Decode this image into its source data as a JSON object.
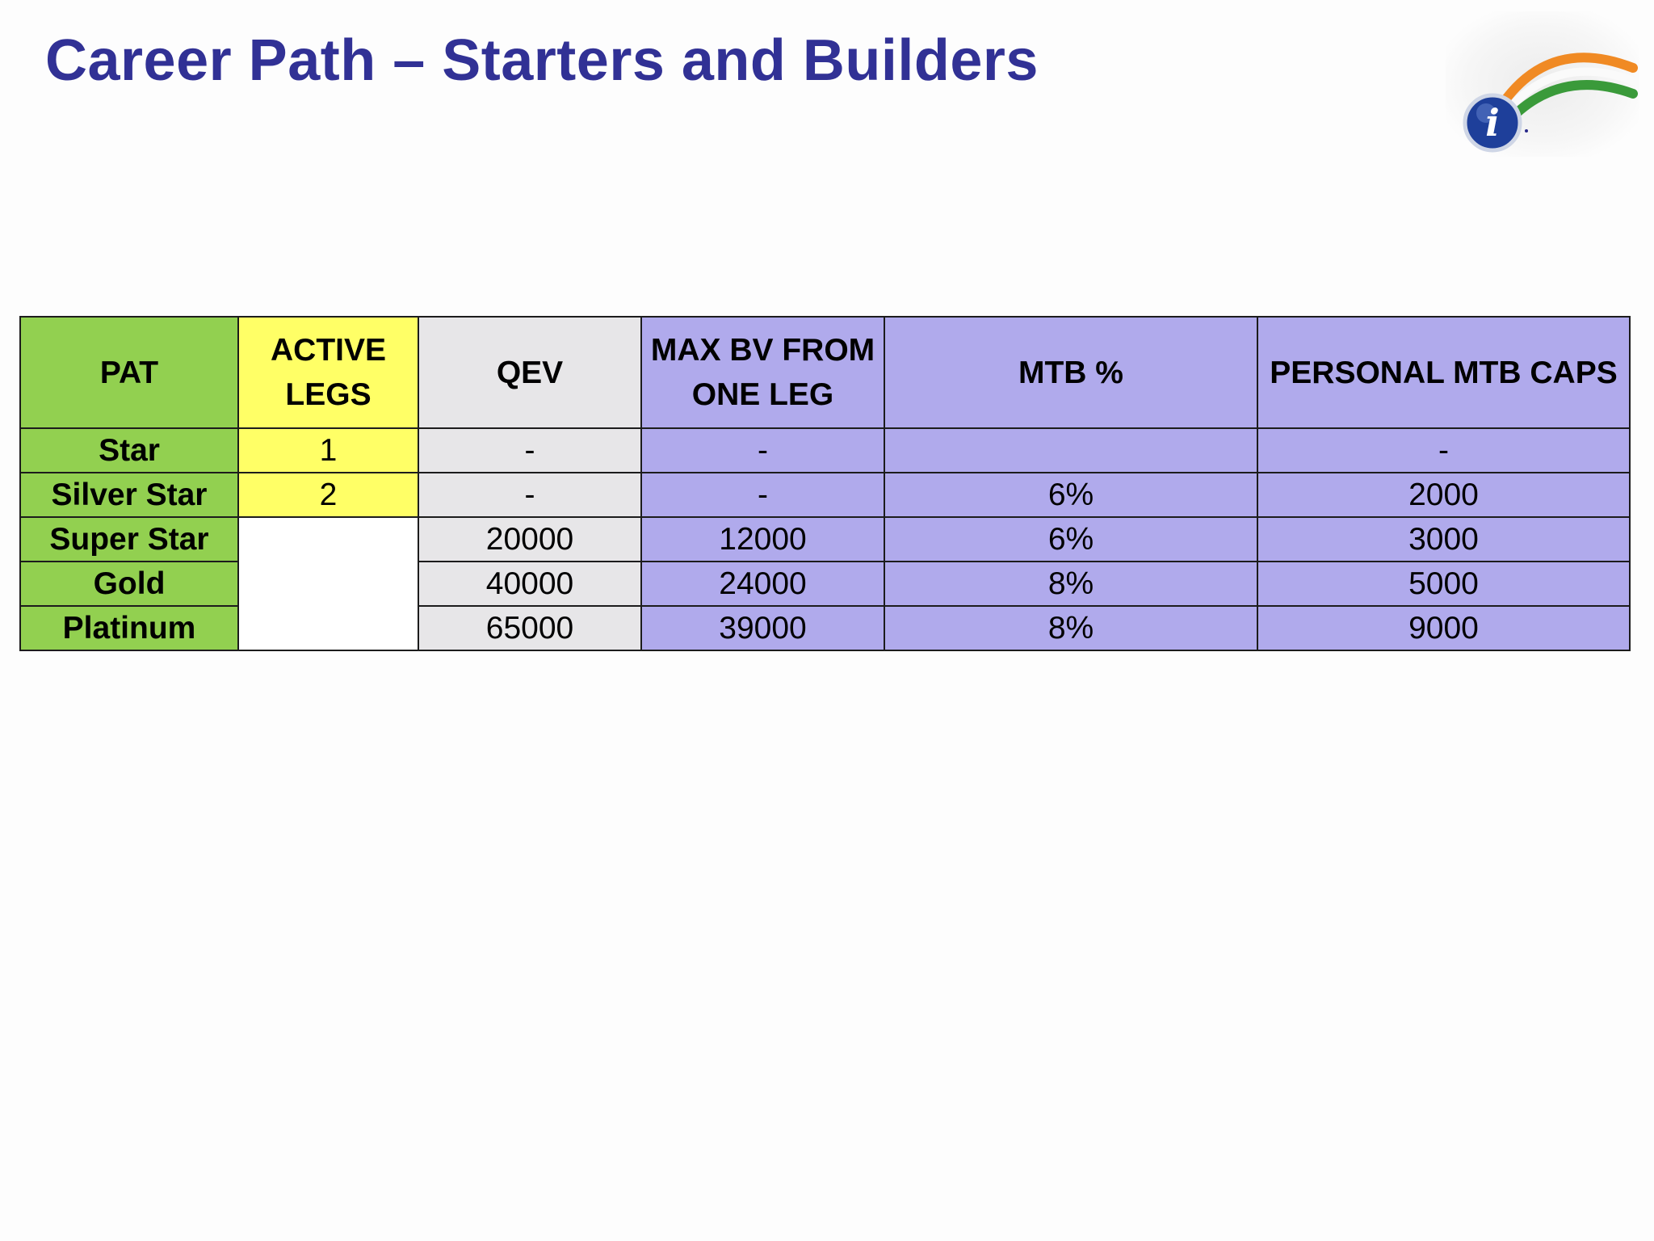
{
  "slide": {
    "title": "Career Path – Starters and Builders"
  },
  "logo": {
    "icon": "brand-logo-icon",
    "letter": "i"
  },
  "table": {
    "headers": {
      "pat": "PAT",
      "active_legs_line1": "ACTIVE",
      "active_legs_line2": "LEGS",
      "qev": "QEV",
      "max_bv_line1": "MAX BV FROM",
      "max_bv_line2": "ONE LEG",
      "mtb_percent": "MTB %",
      "personal_mtb_caps": "PERSONAL MTB CAPS"
    },
    "rows": [
      {
        "pat": "Star",
        "active_legs": "1",
        "qev": "-",
        "max_bv": "-",
        "mtb_percent": "",
        "personal_mtb_caps": "-"
      },
      {
        "pat": "Silver Star",
        "active_legs": "2",
        "qev": "-",
        "max_bv": "-",
        "mtb_percent": "6%",
        "personal_mtb_caps": "2000"
      },
      {
        "pat": "Super Star",
        "active_legs": "",
        "qev": "20000",
        "max_bv": "12000",
        "mtb_percent": "6%",
        "personal_mtb_caps": "3000"
      },
      {
        "pat": "Gold",
        "qev": "40000",
        "max_bv": "24000",
        "mtb_percent": "8%",
        "personal_mtb_caps": "5000"
      },
      {
        "pat": "Platinum",
        "qev": "65000",
        "max_bv": "39000",
        "mtb_percent": "8%",
        "personal_mtb_caps": "9000"
      }
    ]
  },
  "colors": {
    "title": "#313195",
    "pat_column": "#92d050",
    "active_legs_column": "#ffff66",
    "qev_column": "#e7e6e8",
    "mtb_columns": "#b0aaec"
  }
}
